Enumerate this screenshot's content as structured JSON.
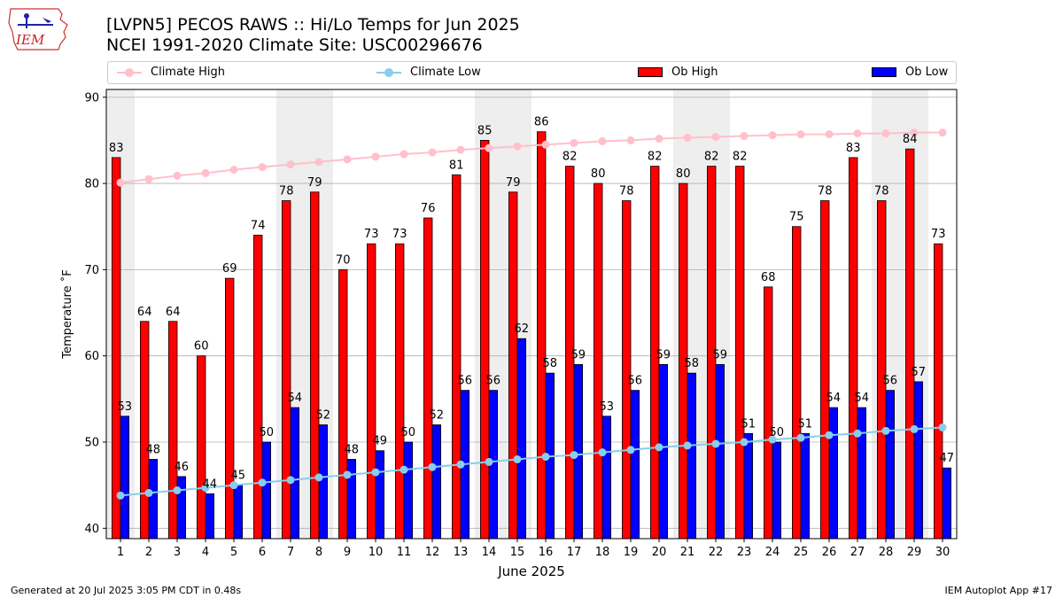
{
  "header": {
    "title_line1": "[LVPN5] PECOS RAWS :: Hi/Lo Temps for Jun 2025",
    "title_line2": "NCEI 1991-2020 Climate Site: USC00296676",
    "logo_text": "IEM"
  },
  "legend": {
    "climate_high": "Climate High",
    "climate_low": "Climate Low",
    "ob_high": "Ob High",
    "ob_low": "Ob Low"
  },
  "colors": {
    "ob_high": "#ff0000",
    "ob_low": "#0000ff",
    "climate_high": "#ffc0cb",
    "climate_low": "#87ceeb",
    "weekend_band": "#eeeeee",
    "grid": "#b0b0b0"
  },
  "chart_data": {
    "type": "bar",
    "xlabel": "June 2025",
    "ylabel": "Temperature ˚F",
    "ylim": [
      38.8,
      90.9
    ],
    "yticks": [
      40,
      50,
      60,
      70,
      80,
      90
    ],
    "grid": "horizontal",
    "categories": [
      "1",
      "2",
      "3",
      "4",
      "5",
      "6",
      "7",
      "8",
      "9",
      "10",
      "11",
      "12",
      "13",
      "14",
      "15",
      "16",
      "17",
      "18",
      "19",
      "20",
      "21",
      "22",
      "23",
      "24",
      "25",
      "26",
      "27",
      "28",
      "29",
      "30"
    ],
    "weekend_days": [
      1,
      7,
      8,
      14,
      15,
      21,
      22,
      28,
      29
    ],
    "series": [
      {
        "name": "Ob High",
        "kind": "bar",
        "values": [
          83,
          64,
          64,
          60,
          69,
          74,
          78,
          79,
          70,
          73,
          73,
          76,
          81,
          85,
          79,
          86,
          82,
          80,
          78,
          82,
          80,
          82,
          82,
          68,
          75,
          78,
          83,
          78,
          84,
          73
        ]
      },
      {
        "name": "Ob Low",
        "kind": "bar",
        "values": [
          53,
          48,
          46,
          44,
          45,
          50,
          54,
          52,
          48,
          49,
          50,
          52,
          56,
          56,
          62,
          58,
          59,
          53,
          56,
          59,
          58,
          59,
          51,
          50,
          51,
          54,
          54,
          56,
          57,
          47
        ]
      },
      {
        "name": "Climate High",
        "kind": "line",
        "values": [
          80.1,
          80.5,
          80.9,
          81.2,
          81.6,
          81.9,
          82.2,
          82.5,
          82.8,
          83.1,
          83.4,
          83.6,
          83.9,
          84.1,
          84.3,
          84.5,
          84.7,
          84.9,
          85.0,
          85.2,
          85.3,
          85.4,
          85.5,
          85.6,
          85.7,
          85.7,
          85.8,
          85.8,
          85.9,
          85.9
        ]
      },
      {
        "name": "Climate Low",
        "kind": "line",
        "values": [
          43.8,
          44.1,
          44.4,
          44.7,
          45.0,
          45.3,
          45.6,
          45.9,
          46.2,
          46.5,
          46.8,
          47.1,
          47.4,
          47.7,
          48.0,
          48.3,
          48.5,
          48.8,
          49.1,
          49.4,
          49.6,
          49.8,
          50.0,
          50.3,
          50.5,
          50.8,
          51.0,
          51.3,
          51.5,
          51.7
        ]
      }
    ]
  },
  "footer": {
    "generated": "Generated at 20 Jul 2025 3:05 PM CDT in 0.48s",
    "app": "IEM Autoplot App #17"
  }
}
